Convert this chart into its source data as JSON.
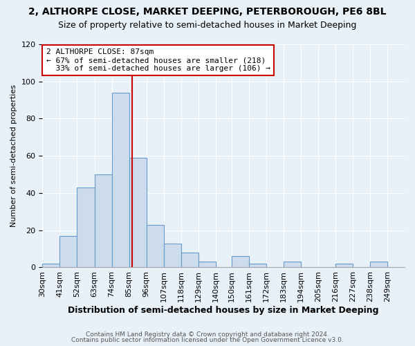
{
  "title": "2, ALTHORPE CLOSE, MARKET DEEPING, PETERBOROUGH, PE6 8BL",
  "subtitle": "Size of property relative to semi-detached houses in Market Deeping",
  "xlabel": "Distribution of semi-detached houses by size in Market Deeping",
  "ylabel": "Number of semi-detached properties",
  "bin_labels": [
    "30sqm",
    "41sqm",
    "52sqm",
    "63sqm",
    "74sqm",
    "85sqm",
    "96sqm",
    "107sqm",
    "118sqm",
    "129sqm",
    "140sqm",
    "150sqm",
    "161sqm",
    "172sqm",
    "183sqm",
    "194sqm",
    "205sqm",
    "216sqm",
    "227sqm",
    "238sqm",
    "249sqm"
  ],
  "bar_heights": [
    2,
    17,
    43,
    50,
    94,
    59,
    23,
    13,
    8,
    3,
    0,
    6,
    2,
    0,
    3,
    0,
    0,
    2,
    0,
    3,
    0
  ],
  "bin_edges": [
    30,
    41,
    52,
    63,
    74,
    85,
    96,
    107,
    118,
    129,
    140,
    150,
    161,
    172,
    183,
    194,
    205,
    216,
    227,
    238,
    249,
    260
  ],
  "property_line_x": 87,
  "bar_color": "#ccdcec",
  "bar_edge_color": "#6699cc",
  "line_color": "#cc0000",
  "annotation_line1": "2 ALTHORPE CLOSE: 87sqm",
  "annotation_line2": "← 67% of semi-detached houses are smaller (218)",
  "annotation_line3": "  33% of semi-detached houses are larger (106) →",
  "annotation_box_color": "#ffffff",
  "annotation_box_edge": "#cc0000",
  "ylim": [
    0,
    120
  ],
  "yticks": [
    0,
    20,
    40,
    60,
    80,
    100,
    120
  ],
  "footer_line1": "Contains HM Land Registry data © Crown copyright and database right 2024.",
  "footer_line2": "Contains public sector information licensed under the Open Government Licence v3.0.",
  "background_color": "#e8f0f8",
  "title_fontsize": 10,
  "subtitle_fontsize": 9,
  "xlabel_fontsize": 9,
  "ylabel_fontsize": 8,
  "tick_fontsize": 8,
  "annot_fontsize": 8,
  "footer_fontsize": 6.5
}
